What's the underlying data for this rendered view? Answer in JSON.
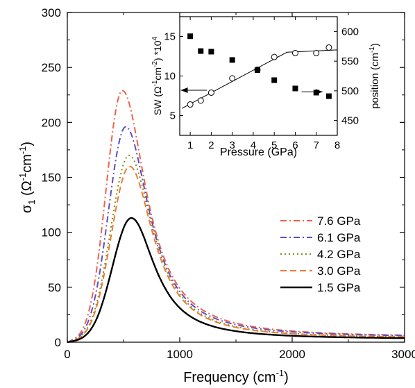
{
  "chart_data": [
    {
      "type": "line",
      "xlabel_main": "Frequency (cm",
      "xlabel_sup": "-1",
      "xlabel_tail": ")",
      "ylabel_sigma": "σ",
      "ylabel_sub": "1",
      "ylabel_mid": " (Ω",
      "ylabel_sup1": "-1",
      "ylabel_cm": "cm",
      "ylabel_sup2": "-1",
      "ylabel_tail": ")",
      "xlim": [
        0,
        3000
      ],
      "ylim": [
        0,
        300
      ],
      "xticks": [
        0,
        1000,
        2000,
        3000
      ],
      "yticks": [
        0,
        50,
        100,
        150,
        200,
        250,
        300
      ],
      "legend_position": "center-right",
      "series": [
        {
          "name": "7.6 GPa",
          "color": "#f0604a",
          "dash": "dashdot",
          "peak_x": 490,
          "peak_y": 229,
          "tail_y": 4
        },
        {
          "name": "6.1 GPa",
          "color": "#5b4fc4",
          "dash": "dashdot",
          "peak_x": 520,
          "peak_y": 196,
          "tail_y": 4
        },
        {
          "name": "4.2 GPa",
          "color": "#7a8c1a",
          "dash": "dotted",
          "peak_x": 550,
          "peak_y": 170,
          "tail_y": 3
        },
        {
          "name": "3.0 GPa",
          "color": "#f07a30",
          "dash": "dashed",
          "peak_x": 555,
          "peak_y": 160,
          "tail_y": 3
        },
        {
          "name": "1.5 GPa",
          "color": "#000000",
          "dash": "solid",
          "peak_x": 570,
          "peak_y": 113,
          "tail_y": 2.5
        }
      ]
    },
    {
      "type": "scatter",
      "xlabel": "Pressure (GPa)",
      "ylabel_left_main": "SW (Ω",
      "ylabel_left_sup1": "-1",
      "ylabel_left_cm": "cm",
      "ylabel_left_sup2": "-2",
      "ylabel_left_tail": ") *10",
      "ylabel_left_sup3": "4",
      "ylabel_right_main": "position (cm",
      "ylabel_right_sup": "-1",
      "ylabel_right_tail": ")",
      "xlim": [
        0.5,
        8
      ],
      "ylim_left": [
        2.5,
        17.5
      ],
      "ylim_right": [
        425,
        625
      ],
      "xticks": [
        1,
        2,
        3,
        4,
        5,
        6,
        7,
        8
      ],
      "yticks_left": [
        5,
        10,
        15
      ],
      "yticks_right": [
        450,
        500,
        550,
        600
      ],
      "series": [
        {
          "axis": "left",
          "marker": "open-circle",
          "x": [
            1,
            1.5,
            2,
            3,
            4.2,
            5,
            6,
            7,
            7.6
          ],
          "y": [
            6.4,
            6.9,
            7.9,
            9.7,
            10.8,
            12.4,
            12.9,
            12.9,
            13.6
          ]
        },
        {
          "axis": "right",
          "marker": "filled-square",
          "x": [
            1,
            1.5,
            2,
            3,
            4.2,
            5,
            6,
            7,
            7.6
          ],
          "y": [
            592,
            567,
            566,
            552,
            535,
            518,
            504,
            497,
            491
          ]
        }
      ],
      "fit_line_left": {
        "x": [
          0.6,
          5.6,
          8
        ],
        "y": [
          5.9,
          13.0,
          13.3
        ]
      },
      "arrows": [
        {
          "direction": "left",
          "x_from": 1.8,
          "x_to": 0.55,
          "y": 8.2
        },
        {
          "direction": "right",
          "x_from": 6.3,
          "x_to": 7.3,
          "y": 8.0
        }
      ]
    }
  ]
}
